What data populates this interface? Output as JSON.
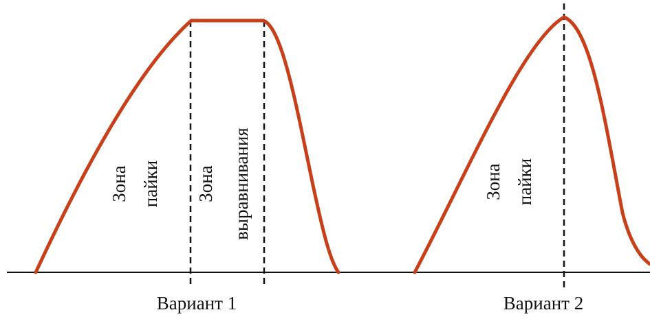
{
  "diagram": {
    "zones": [
      {
        "lines": [
          "Зона",
          "пайки"
        ]
      },
      {
        "lines": [
          "Зона",
          "выравнивания"
        ]
      },
      {
        "lines": [
          "Зона",
          "пайки"
        ]
      }
    ],
    "variants": [
      "Вариант 1",
      "Вариант 2"
    ]
  }
}
